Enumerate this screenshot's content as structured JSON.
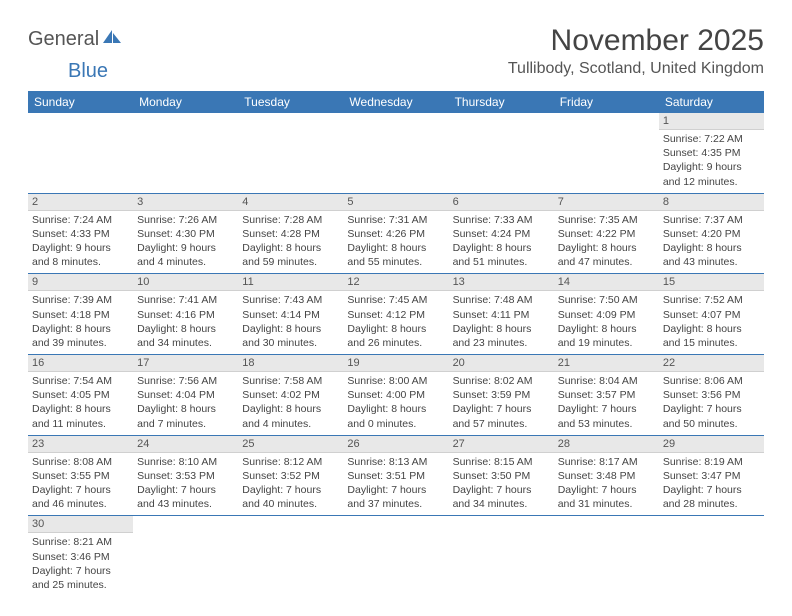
{
  "brand": {
    "part1": "General",
    "part2": "Blue"
  },
  "title": "November 2025",
  "location": "Tullibody, Scotland, United Kingdom",
  "colors": {
    "header_bg": "#3a77b5",
    "header_fg": "#ffffff",
    "row_divider": "#3a77b5",
    "daynum_bg": "#e8e8e8",
    "text": "#444444"
  },
  "daysOfWeek": [
    "Sunday",
    "Monday",
    "Tuesday",
    "Wednesday",
    "Thursday",
    "Friday",
    "Saturday"
  ],
  "leadingBlanks": 6,
  "cells": [
    {
      "n": 1,
      "sr": "7:22 AM",
      "ss": "4:35 PM",
      "dl": "9 hours and 12 minutes."
    },
    {
      "n": 2,
      "sr": "7:24 AM",
      "ss": "4:33 PM",
      "dl": "9 hours and 8 minutes."
    },
    {
      "n": 3,
      "sr": "7:26 AM",
      "ss": "4:30 PM",
      "dl": "9 hours and 4 minutes."
    },
    {
      "n": 4,
      "sr": "7:28 AM",
      "ss": "4:28 PM",
      "dl": "8 hours and 59 minutes."
    },
    {
      "n": 5,
      "sr": "7:31 AM",
      "ss": "4:26 PM",
      "dl": "8 hours and 55 minutes."
    },
    {
      "n": 6,
      "sr": "7:33 AM",
      "ss": "4:24 PM",
      "dl": "8 hours and 51 minutes."
    },
    {
      "n": 7,
      "sr": "7:35 AM",
      "ss": "4:22 PM",
      "dl": "8 hours and 47 minutes."
    },
    {
      "n": 8,
      "sr": "7:37 AM",
      "ss": "4:20 PM",
      "dl": "8 hours and 43 minutes."
    },
    {
      "n": 9,
      "sr": "7:39 AM",
      "ss": "4:18 PM",
      "dl": "8 hours and 39 minutes."
    },
    {
      "n": 10,
      "sr": "7:41 AM",
      "ss": "4:16 PM",
      "dl": "8 hours and 34 minutes."
    },
    {
      "n": 11,
      "sr": "7:43 AM",
      "ss": "4:14 PM",
      "dl": "8 hours and 30 minutes."
    },
    {
      "n": 12,
      "sr": "7:45 AM",
      "ss": "4:12 PM",
      "dl": "8 hours and 26 minutes."
    },
    {
      "n": 13,
      "sr": "7:48 AM",
      "ss": "4:11 PM",
      "dl": "8 hours and 23 minutes."
    },
    {
      "n": 14,
      "sr": "7:50 AM",
      "ss": "4:09 PM",
      "dl": "8 hours and 19 minutes."
    },
    {
      "n": 15,
      "sr": "7:52 AM",
      "ss": "4:07 PM",
      "dl": "8 hours and 15 minutes."
    },
    {
      "n": 16,
      "sr": "7:54 AM",
      "ss": "4:05 PM",
      "dl": "8 hours and 11 minutes."
    },
    {
      "n": 17,
      "sr": "7:56 AM",
      "ss": "4:04 PM",
      "dl": "8 hours and 7 minutes."
    },
    {
      "n": 18,
      "sr": "7:58 AM",
      "ss": "4:02 PM",
      "dl": "8 hours and 4 minutes."
    },
    {
      "n": 19,
      "sr": "8:00 AM",
      "ss": "4:00 PM",
      "dl": "8 hours and 0 minutes."
    },
    {
      "n": 20,
      "sr": "8:02 AM",
      "ss": "3:59 PM",
      "dl": "7 hours and 57 minutes."
    },
    {
      "n": 21,
      "sr": "8:04 AM",
      "ss": "3:57 PM",
      "dl": "7 hours and 53 minutes."
    },
    {
      "n": 22,
      "sr": "8:06 AM",
      "ss": "3:56 PM",
      "dl": "7 hours and 50 minutes."
    },
    {
      "n": 23,
      "sr": "8:08 AM",
      "ss": "3:55 PM",
      "dl": "7 hours and 46 minutes."
    },
    {
      "n": 24,
      "sr": "8:10 AM",
      "ss": "3:53 PM",
      "dl": "7 hours and 43 minutes."
    },
    {
      "n": 25,
      "sr": "8:12 AM",
      "ss": "3:52 PM",
      "dl": "7 hours and 40 minutes."
    },
    {
      "n": 26,
      "sr": "8:13 AM",
      "ss": "3:51 PM",
      "dl": "7 hours and 37 minutes."
    },
    {
      "n": 27,
      "sr": "8:15 AM",
      "ss": "3:50 PM",
      "dl": "7 hours and 34 minutes."
    },
    {
      "n": 28,
      "sr": "8:17 AM",
      "ss": "3:48 PM",
      "dl": "7 hours and 31 minutes."
    },
    {
      "n": 29,
      "sr": "8:19 AM",
      "ss": "3:47 PM",
      "dl": "7 hours and 28 minutes."
    },
    {
      "n": 30,
      "sr": "8:21 AM",
      "ss": "3:46 PM",
      "dl": "7 hours and 25 minutes."
    }
  ],
  "labels": {
    "sunrise": "Sunrise:",
    "sunset": "Sunset:",
    "daylight": "Daylight:"
  }
}
